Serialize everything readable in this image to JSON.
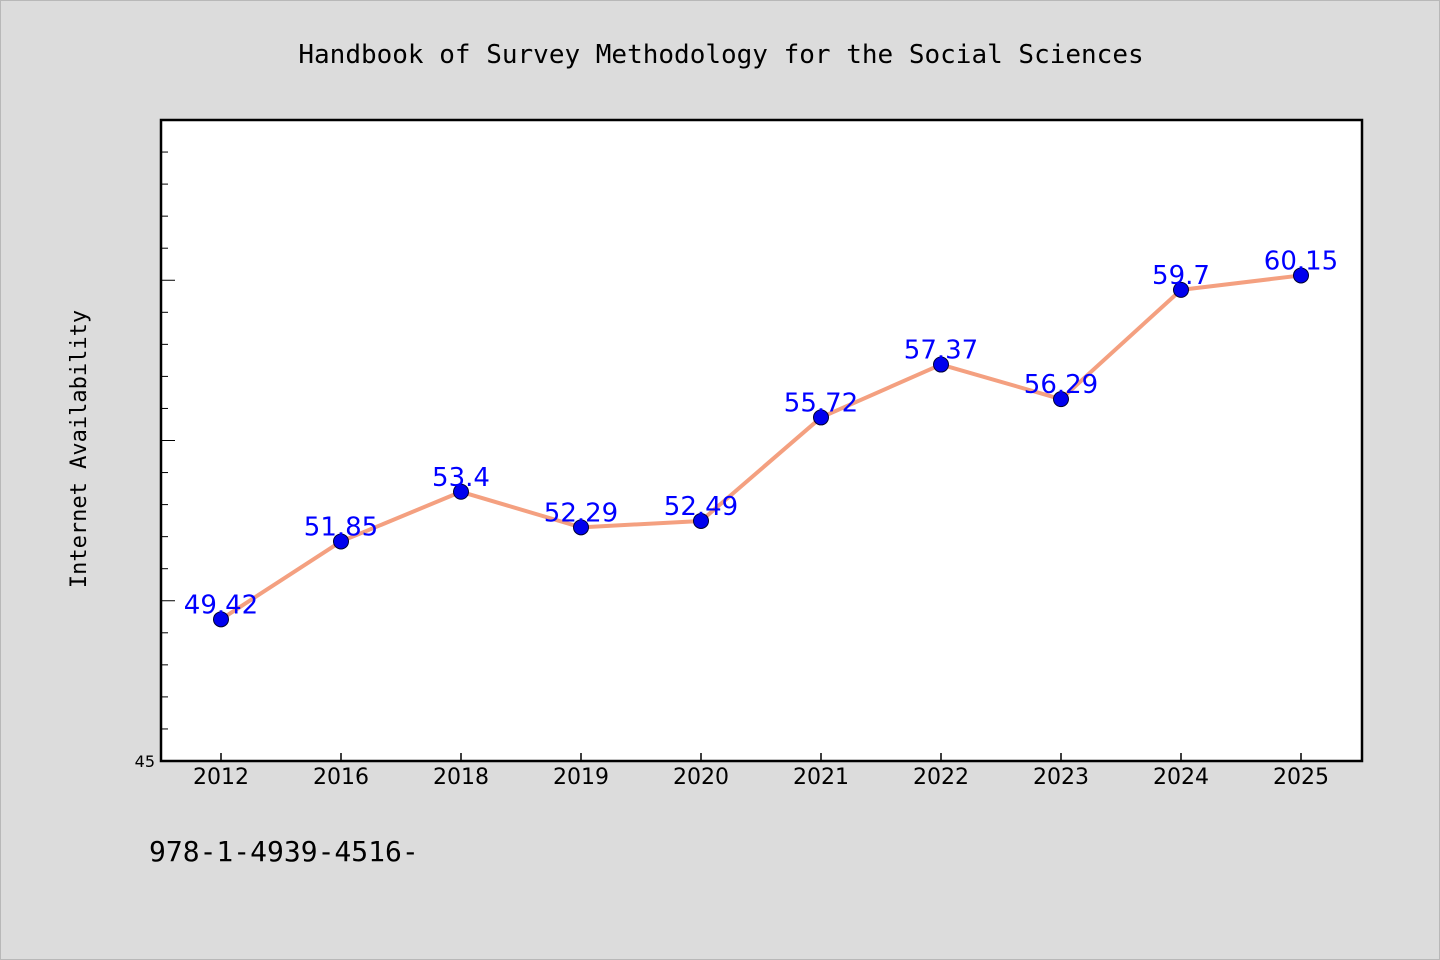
{
  "chart_data": {
    "type": "line",
    "title": "Handbook of Survey Methodology for the Social Sciences",
    "ylabel": "Internet Availability",
    "xlabel": "",
    "categories": [
      "2012",
      "2016",
      "2018",
      "2019",
      "2020",
      "2021",
      "2022",
      "2023",
      "2024",
      "2025"
    ],
    "values": [
      49.42,
      51.85,
      53.4,
      52.29,
      52.49,
      55.72,
      57.37,
      56.29,
      59.7,
      60.15
    ],
    "data_labels": [
      "49.42",
      "51.85",
      "53.4",
      "52.29",
      "52.49",
      "55.72",
      "57.37",
      "56.29",
      "59.7",
      "60.15"
    ],
    "ylim": [
      45,
      65
    ],
    "y_tick_labels": [
      "45"
    ],
    "grid": false,
    "line_color": "#f4a080",
    "marker_color": "#0000ee",
    "label_color": "#0000ff"
  },
  "caption": "978-1-4939-4516-"
}
